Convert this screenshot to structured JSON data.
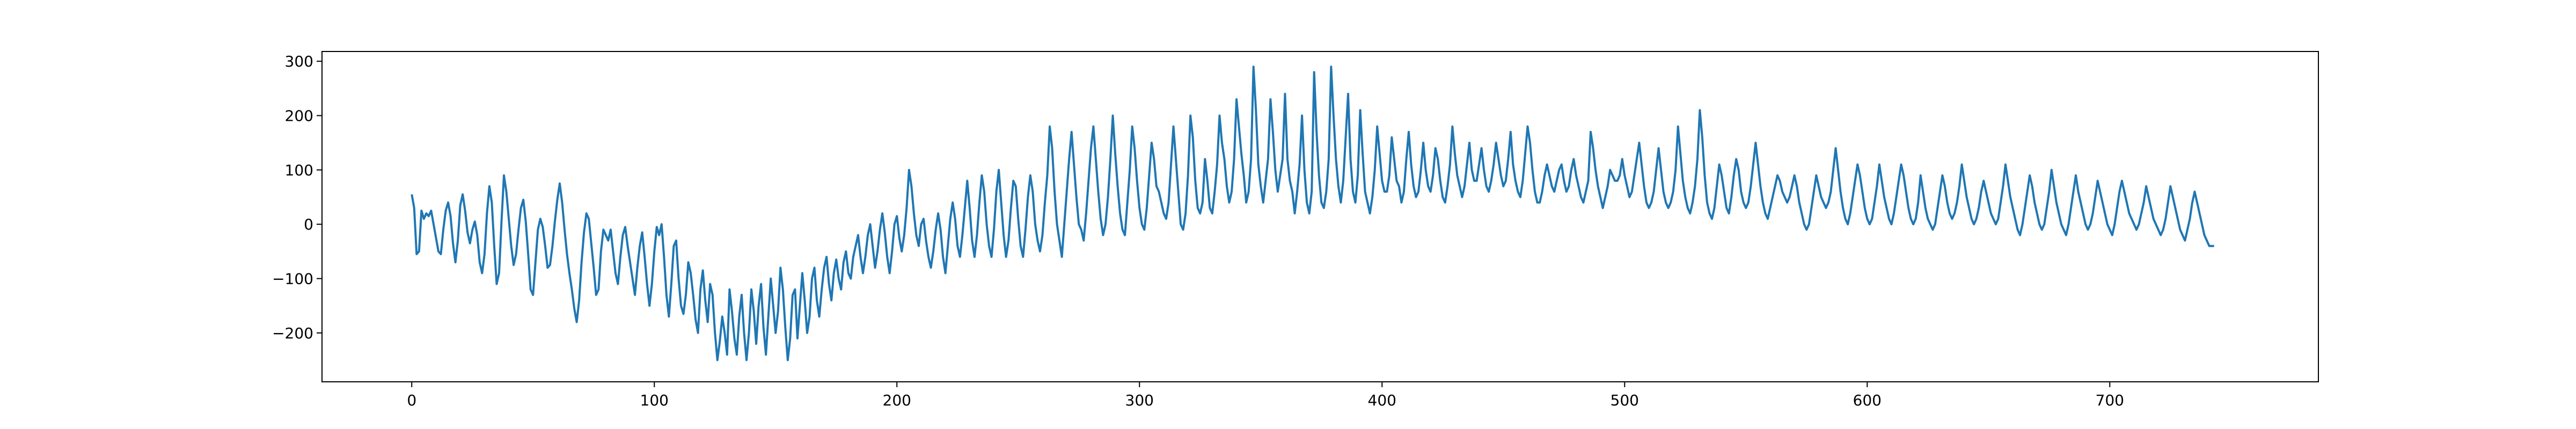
{
  "chart_data": {
    "type": "line",
    "title": "",
    "xlabel": "",
    "ylabel": "",
    "xlim": [
      -37,
      786
    ],
    "ylim": [
      -290,
      318
    ],
    "x_ticks": [
      0,
      100,
      200,
      300,
      400,
      500,
      600,
      700
    ],
    "y_ticks": [
      -200,
      -100,
      0,
      100,
      200,
      300
    ],
    "grid": false,
    "legend": "none",
    "line_color": "#1f77b4",
    "series": [
      {
        "x_start": 0,
        "x_step": 1,
        "values": [
          55,
          30,
          -55,
          -50,
          25,
          10,
          20,
          15,
          25,
          0,
          -25,
          -50,
          -55,
          -10,
          25,
          40,
          15,
          -35,
          -70,
          -30,
          35,
          55,
          25,
          -15,
          -35,
          -10,
          5,
          -20,
          -70,
          -90,
          -55,
          20,
          70,
          40,
          -40,
          -110,
          -90,
          5,
          90,
          60,
          10,
          -40,
          -75,
          -55,
          -10,
          30,
          45,
          5,
          -55,
          -120,
          -130,
          -70,
          -10,
          10,
          -5,
          -40,
          -80,
          -75,
          -40,
          5,
          45,
          75,
          40,
          -10,
          -55,
          -90,
          -120,
          -155,
          -180,
          -140,
          -70,
          -15,
          20,
          10,
          -35,
          -80,
          -130,
          -120,
          -50,
          -10,
          -20,
          -30,
          -10,
          -50,
          -90,
          -110,
          -60,
          -20,
          -5,
          -40,
          -70,
          -100,
          -130,
          -80,
          -40,
          -15,
          -60,
          -110,
          -150,
          -110,
          -50,
          -5,
          -20,
          0,
          -60,
          -130,
          -170,
          -110,
          -40,
          -30,
          -100,
          -150,
          -165,
          -130,
          -70,
          -90,
          -130,
          -175,
          -200,
          -120,
          -85,
          -140,
          -180,
          -110,
          -130,
          -200,
          -250,
          -215,
          -170,
          -200,
          -240,
          -120,
          -160,
          -210,
          -240,
          -170,
          -130,
          -200,
          -250,
          -200,
          -120,
          -160,
          -220,
          -150,
          -110,
          -190,
          -240,
          -170,
          -100,
          -150,
          -200,
          -160,
          -80,
          -120,
          -190,
          -250,
          -210,
          -130,
          -120,
          -210,
          -150,
          -90,
          -140,
          -200,
          -170,
          -100,
          -80,
          -140,
          -170,
          -120,
          -80,
          -60,
          -110,
          -140,
          -90,
          -65,
          -100,
          -120,
          -70,
          -50,
          -90,
          -100,
          -60,
          -40,
          -20,
          -60,
          -90,
          -60,
          -20,
          0,
          -40,
          -80,
          -50,
          -10,
          20,
          -15,
          -60,
          -90,
          -50,
          0,
          15,
          -25,
          -50,
          -20,
          30,
          100,
          70,
          20,
          -20,
          -40,
          0,
          10,
          -30,
          -60,
          -80,
          -50,
          -10,
          20,
          -10,
          -60,
          -90,
          -40,
          10,
          40,
          10,
          -40,
          -60,
          -20,
          30,
          80,
          30,
          -30,
          -60,
          -20,
          40,
          90,
          60,
          0,
          -40,
          -60,
          -10,
          60,
          100,
          40,
          -20,
          -60,
          -30,
          30,
          80,
          70,
          10,
          -40,
          -60,
          -10,
          50,
          90,
          60,
          0,
          -30,
          -50,
          -20,
          40,
          90,
          180,
          140,
          60,
          0,
          -30,
          -60,
          0,
          60,
          120,
          170,
          110,
          50,
          0,
          -10,
          -30,
          20,
          80,
          140,
          180,
          120,
          60,
          10,
          -20,
          0,
          50,
          120,
          200,
          130,
          70,
          20,
          -10,
          -20,
          40,
          100,
          180,
          140,
          80,
          30,
          0,
          -10,
          30,
          90,
          150,
          120,
          70,
          60,
          40,
          20,
          10,
          40,
          110,
          180,
          120,
          60,
          0,
          -10,
          20,
          90,
          200,
          160,
          80,
          30,
          20,
          40,
          120,
          80,
          30,
          20,
          60,
          110,
          200,
          150,
          120,
          70,
          40,
          60,
          120,
          230,
          180,
          130,
          90,
          40,
          60,
          120,
          290,
          210,
          110,
          70,
          40,
          80,
          120,
          230,
          170,
          100,
          60,
          90,
          120,
          240,
          120,
          80,
          60,
          20,
          60,
          110,
          200,
          100,
          40,
          20,
          60,
          280,
          170,
          90,
          40,
          30,
          60,
          120,
          290,
          200,
          120,
          70,
          40,
          80,
          160,
          240,
          120,
          60,
          40,
          90,
          210,
          130,
          60,
          40,
          20,
          50,
          100,
          180,
          130,
          80,
          60,
          60,
          90,
          160,
          120,
          80,
          70,
          40,
          60,
          120,
          170,
          110,
          70,
          50,
          60,
          100,
          150,
          100,
          70,
          60,
          90,
          140,
          120,
          80,
          50,
          40,
          70,
          110,
          180,
          130,
          90,
          70,
          50,
          70,
          110,
          150,
          100,
          80,
          80,
          110,
          140,
          100,
          70,
          60,
          80,
          110,
          150,
          120,
          90,
          70,
          80,
          120,
          170,
          110,
          80,
          60,
          50,
          80,
          130,
          180,
          150,
          100,
          60,
          40,
          40,
          60,
          90,
          110,
          90,
          70,
          60,
          80,
          100,
          110,
          80,
          60,
          70,
          100,
          120,
          90,
          70,
          50,
          40,
          60,
          80,
          170,
          140,
          100,
          70,
          50,
          30,
          50,
          70,
          100,
          90,
          80,
          80,
          90,
          120,
          90,
          70,
          50,
          60,
          90,
          120,
          150,
          110,
          70,
          40,
          30,
          40,
          60,
          100,
          140,
          100,
          60,
          40,
          30,
          40,
          60,
          100,
          180,
          130,
          80,
          50,
          30,
          20,
          40,
          70,
          120,
          210,
          160,
          90,
          40,
          20,
          10,
          30,
          70,
          110,
          90,
          60,
          30,
          20,
          50,
          90,
          120,
          100,
          60,
          40,
          30,
          40,
          70,
          110,
          150,
          110,
          70,
          40,
          20,
          10,
          30,
          50,
          70,
          90,
          80,
          60,
          50,
          40,
          50,
          70,
          90,
          70,
          40,
          20,
          0,
          -10,
          0,
          30,
          60,
          90,
          70,
          50,
          40,
          30,
          40,
          60,
          100,
          140,
          100,
          60,
          30,
          10,
          0,
          20,
          50,
          80,
          110,
          90,
          60,
          30,
          10,
          0,
          10,
          40,
          70,
          110,
          80,
          50,
          30,
          10,
          0,
          20,
          50,
          80,
          110,
          90,
          60,
          30,
          10,
          0,
          10,
          40,
          90,
          60,
          30,
          10,
          0,
          -10,
          0,
          30,
          60,
          90,
          70,
          40,
          20,
          10,
          20,
          40,
          70,
          110,
          80,
          50,
          30,
          10,
          0,
          10,
          30,
          60,
          80,
          60,
          40,
          20,
          10,
          0,
          10,
          40,
          70,
          110,
          80,
          50,
          30,
          10,
          -10,
          -20,
          0,
          30,
          60,
          90,
          70,
          40,
          20,
          0,
          -10,
          0,
          30,
          60,
          100,
          70,
          40,
          20,
          0,
          -10,
          -20,
          0,
          30,
          60,
          90,
          60,
          40,
          20,
          0,
          -10,
          0,
          20,
          50,
          80,
          60,
          40,
          20,
          0,
          -10,
          -20,
          0,
          30,
          60,
          80,
          60,
          40,
          20,
          10,
          0,
          -10,
          0,
          20,
          40,
          70,
          50,
          30,
          10,
          0,
          -10,
          -20,
          -10,
          10,
          40,
          70,
          50,
          30,
          10,
          -10,
          -20,
          -30,
          -10,
          10,
          40,
          60,
          40,
          20,
          0,
          -20,
          -30,
          -40,
          -40,
          -40
        ]
      }
    ]
  }
}
